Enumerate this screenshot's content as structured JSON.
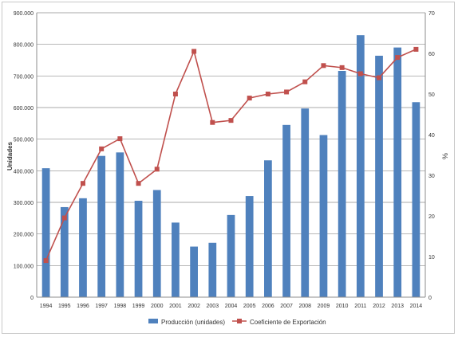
{
  "chart_data": {
    "type": "bar",
    "categories": [
      "1994",
      "1995",
      "1996",
      "1997",
      "1998",
      "1999",
      "2000",
      "2001",
      "2002",
      "2003",
      "2004",
      "2005",
      "2006",
      "2007",
      "2008",
      "2009",
      "2010",
      "2011",
      "2012",
      "2013",
      "2014"
    ],
    "series": [
      {
        "name": "Producción (unidades)",
        "type": "bar",
        "axis": "left",
        "color": "#4f81bd",
        "values": [
          408000,
          285000,
          313000,
          447000,
          458000,
          305000,
          339000,
          236000,
          160000,
          172000,
          260000,
          320000,
          433000,
          545000,
          597000,
          513000,
          716000,
          829000,
          764000,
          790000,
          617000
        ]
      },
      {
        "name": "Coeficiente de Exportación",
        "type": "line",
        "axis": "right",
        "color": "#c0504d",
        "values": [
          9,
          19.5,
          28,
          36.5,
          39,
          28,
          31.5,
          50,
          60.5,
          43,
          43.5,
          49,
          50,
          50.5,
          53,
          57,
          56.5,
          55,
          54,
          59,
          61
        ]
      }
    ],
    "ylabel": "Unidades",
    "y2label": "%",
    "ylim": [
      0,
      900000
    ],
    "y2lim": [
      0,
      70
    ],
    "yticks": [
      "0",
      "100.000",
      "200.000",
      "300.000",
      "400.000",
      "500.000",
      "600.000",
      "700.000",
      "800.000",
      "900.000"
    ],
    "y2ticks": [
      "0",
      "10",
      "20",
      "30",
      "40",
      "50",
      "60",
      "70"
    ],
    "grid": true,
    "legend": "bottom"
  }
}
